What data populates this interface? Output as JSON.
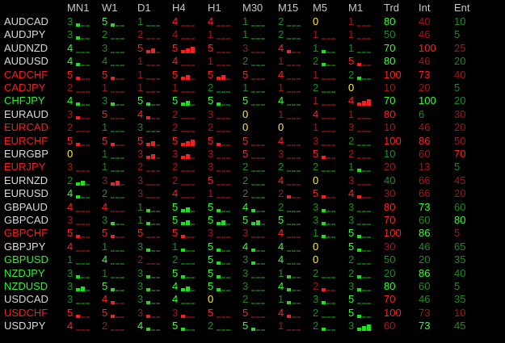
{
  "colors": {
    "header": "#c8c8c8",
    "symbol_neutral": "#d8d8d8",
    "symbol_bull": "#33ee33",
    "symbol_bear": "#ee2020",
    "digit_bull_bright": "#33ff33",
    "digit_bull_dim": "#1f8a1f",
    "digit_bear_bright": "#ff2020",
    "digit_bear_dim": "#a01818",
    "digit_neutral": "#ffee33",
    "seg_bull_strong": "#22dd22",
    "seg_bull_weak": "#0f5a0f",
    "seg_bear_strong": "#ee2222",
    "seg_bear_weak": "#601010"
  },
  "headers": [
    "MN1",
    "W1",
    "D1",
    "H4",
    "H1",
    "M30",
    "M15",
    "M5",
    "M1",
    "Trd",
    "Int",
    "Ent"
  ],
  "rows": [
    {
      "symbol": "AUDCAD",
      "sym_state": "neutral",
      "tf": [
        [
          "3",
          "gd",
          1
        ],
        [
          "5",
          "gb",
          1
        ],
        [
          "1",
          "gd",
          0
        ],
        [
          "4",
          "rb",
          0
        ],
        [
          "4",
          "rb",
          0
        ],
        [
          "1",
          "gd",
          0
        ],
        [
          "2",
          "gd",
          0
        ],
        [
          "0",
          "y",
          0
        ],
        [
          "1",
          "rd",
          0
        ]
      ],
      "trd": "80",
      "trd_c": "gb",
      "int": "40",
      "int_c": "rd",
      "ent": "10",
      "ent_c": "gd"
    },
    {
      "symbol": "AUDJPY",
      "sym_state": "neutral",
      "tf": [
        [
          "3",
          "gd",
          1
        ],
        [
          "2",
          "gd",
          0
        ],
        [
          "2",
          "rd",
          0
        ],
        [
          "4",
          "rd",
          0
        ],
        [
          "1",
          "rd",
          0
        ],
        [
          "1",
          "gd",
          0
        ],
        [
          "2",
          "gd",
          0
        ],
        [
          "1",
          "rd",
          0
        ],
        [
          "1",
          "rd",
          0
        ]
      ],
      "trd": "50",
      "trd_c": "gd",
      "int": "46",
      "int_c": "rd",
      "ent": "5",
      "ent_c": "gd"
    },
    {
      "symbol": "AUDNZD",
      "sym_state": "neutral",
      "tf": [
        [
          "4",
          "gb",
          0
        ],
        [
          "3",
          "gd",
          0
        ],
        [
          "5",
          "rb",
          2
        ],
        [
          "5",
          "rb",
          3
        ],
        [
          "5",
          "rb",
          0
        ],
        [
          "3",
          "rd",
          0
        ],
        [
          "4",
          "rb",
          1
        ],
        [
          "1",
          "gd",
          1
        ],
        [
          "1",
          "gd",
          0
        ]
      ],
      "trd": "70",
      "trd_c": "gb",
      "int": "100",
      "int_c": "rb",
      "ent": "25",
      "ent_c": "rd"
    },
    {
      "symbol": "AUDUSD",
      "sym_state": "neutral",
      "tf": [
        [
          "4",
          "gb",
          1
        ],
        [
          "4",
          "gd",
          0
        ],
        [
          "1",
          "rd",
          0
        ],
        [
          "4",
          "rb",
          0
        ],
        [
          "1",
          "rd",
          0
        ],
        [
          "2",
          "gd",
          0
        ],
        [
          "1",
          "rd",
          0
        ],
        [
          "2",
          "gd",
          1
        ],
        [
          "5",
          "rb",
          1
        ]
      ],
      "trd": "80",
      "trd_c": "gb",
      "int": "46",
      "int_c": "rd",
      "ent": "20",
      "ent_c": "gd"
    },
    {
      "symbol": "CADCHF",
      "sym_state": "bear",
      "tf": [
        [
          "5",
          "rb",
          1
        ],
        [
          "5",
          "rb",
          1
        ],
        [
          "1",
          "rd",
          0
        ],
        [
          "5",
          "rb",
          2
        ],
        [
          "5",
          "rb",
          2
        ],
        [
          "5",
          "rb",
          0
        ],
        [
          "4",
          "rb",
          0
        ],
        [
          "1",
          "rd",
          0
        ],
        [
          "2",
          "gd",
          1
        ]
      ],
      "trd": "100",
      "trd_c": "rb",
      "int": "73",
      "int_c": "rb",
      "ent": "40",
      "ent_c": "rd"
    },
    {
      "symbol": "CADJPY",
      "sym_state": "bear",
      "tf": [
        [
          "2",
          "rd",
          0
        ],
        [
          "1",
          "rd",
          0
        ],
        [
          "1",
          "rd",
          0
        ],
        [
          "1",
          "rd",
          0
        ],
        [
          "2",
          "gd",
          0
        ],
        [
          "1",
          "gd",
          0
        ],
        [
          "1",
          "rd",
          0
        ],
        [
          "2",
          "gd",
          0
        ],
        [
          "0",
          "y",
          3
        ]
      ],
      "trd": "10",
      "trd_c": "rd",
      "int": "20",
      "int_c": "rd",
      "ent": "5",
      "ent_c": "gd"
    },
    {
      "symbol": "CHFJPY",
      "sym_state": "bull",
      "tf": [
        [
          "4",
          "gb",
          1
        ],
        [
          "3",
          "gd",
          1
        ],
        [
          "5",
          "gb",
          1
        ],
        [
          "5",
          "gb",
          2
        ],
        [
          "5",
          "gb",
          1
        ],
        [
          "5",
          "gb",
          0
        ],
        [
          "4",
          "gb",
          0
        ],
        [
          "1",
          "rd",
          0
        ],
        [
          "4",
          "rb",
          3
        ]
      ],
      "trd": "70",
      "trd_c": "gb",
      "int": "100",
      "int_c": "gb",
      "ent": "20",
      "ent_c": "gd"
    },
    {
      "symbol": "EURAUD",
      "sym_state": "neutral",
      "tf": [
        [
          "3",
          "rd",
          1
        ],
        [
          "5",
          "rb",
          0
        ],
        [
          "4",
          "rb",
          1
        ],
        [
          "2",
          "rd",
          0
        ],
        [
          "3",
          "rd",
          0
        ],
        [
          "0",
          "y",
          0
        ],
        [
          "1",
          "rd",
          0
        ],
        [
          "4",
          "rb",
          0
        ],
        [
          "1",
          "rd",
          0
        ]
      ],
      "trd": "80",
      "trd_c": "rb",
      "int": "6",
      "int_c": "gd",
      "ent": "30",
      "ent_c": "rd"
    },
    {
      "symbol": "EURCAD",
      "sym_state": "bear",
      "tf": [
        [
          "2",
          "rd",
          0
        ],
        [
          "1",
          "gd",
          0
        ],
        [
          "3",
          "gd",
          0
        ],
        [
          "2",
          "rd",
          0
        ],
        [
          "2",
          "rd",
          0
        ],
        [
          "0",
          "y",
          0
        ],
        [
          "0",
          "y",
          0
        ],
        [
          "1",
          "rd",
          0
        ],
        [
          "3",
          "rd",
          0
        ]
      ],
      "trd": "10",
      "trd_c": "rd",
      "int": "46",
      "int_c": "rd",
      "ent": "20",
      "ent_c": "rd"
    },
    {
      "symbol": "EURCHF",
      "sym_state": "bear",
      "tf": [
        [
          "5",
          "rb",
          1
        ],
        [
          "5",
          "rb",
          1
        ],
        [
          "5",
          "rb",
          2
        ],
        [
          "5",
          "rb",
          3
        ],
        [
          "5",
          "rb",
          1
        ],
        [
          "5",
          "rb",
          0
        ],
        [
          "4",
          "rb",
          0
        ],
        [
          "3",
          "rd",
          0
        ],
        [
          "2",
          "gd",
          0
        ]
      ],
      "trd": "100",
      "trd_c": "rb",
      "int": "86",
      "int_c": "rb",
      "ent": "50",
      "ent_c": "rd"
    },
    {
      "symbol": "EURGBP",
      "sym_state": "neutral",
      "tf": [
        [
          "0",
          "y",
          0
        ],
        [
          "1",
          "gd",
          0
        ],
        [
          "3",
          "rd",
          2
        ],
        [
          "3",
          "rd",
          2
        ],
        [
          "3",
          "rd",
          0
        ],
        [
          "5",
          "rb",
          0
        ],
        [
          "3",
          "rd",
          0
        ],
        [
          "5",
          "rb",
          1
        ],
        [
          "2",
          "rd",
          0
        ]
      ],
      "trd": "10",
      "trd_c": "gd",
      "int": "60",
      "int_c": "rd",
      "ent": "70",
      "ent_c": "rb"
    },
    {
      "symbol": "EURJPY",
      "sym_state": "bear",
      "tf": [
        [
          "3",
          "rd",
          0
        ],
        [
          "1",
          "gd",
          0
        ],
        [
          "2",
          "rd",
          0
        ],
        [
          "2",
          "rd",
          0
        ],
        [
          "3",
          "rd",
          0
        ],
        [
          "2",
          "gd",
          0
        ],
        [
          "2",
          "gd",
          0
        ],
        [
          "2",
          "gd",
          0
        ],
        [
          "1",
          "gd",
          1
        ]
      ],
      "trd": "20",
      "trd_c": "rd",
      "int": "13",
      "int_c": "rd",
      "ent": "5",
      "ent_c": "gd"
    },
    {
      "symbol": "EURNZD",
      "sym_state": "neutral",
      "tf": [
        [
          "2",
          "gd",
          2
        ],
        [
          "3",
          "rd",
          2
        ],
        [
          "3",
          "rd",
          0
        ],
        [
          "2",
          "rd",
          0
        ],
        [
          "5",
          "rb",
          0
        ],
        [
          "2",
          "gd",
          0
        ],
        [
          "4",
          "rb",
          0
        ],
        [
          "0",
          "y",
          0
        ],
        [
          "3",
          "rd",
          0
        ]
      ],
      "trd": "40",
      "trd_c": "gd",
      "int": "66",
      "int_c": "rd",
      "ent": "45",
      "ent_c": "rd"
    },
    {
      "symbol": "EURUSD",
      "sym_state": "neutral",
      "tf": [
        [
          "4",
          "gb",
          1
        ],
        [
          "2",
          "gd",
          0
        ],
        [
          "3",
          "rd",
          0
        ],
        [
          "4",
          "rb",
          0
        ],
        [
          "1",
          "rd",
          0
        ],
        [
          "2",
          "gd",
          0
        ],
        [
          "2",
          "rd",
          1
        ],
        [
          "5",
          "rb",
          1
        ],
        [
          "4",
          "rb",
          1
        ]
      ],
      "trd": "30",
      "trd_c": "rd",
      "int": "66",
      "int_c": "rd",
      "ent": "20",
      "ent_c": "rd"
    },
    {
      "symbol": "GBPAUD",
      "sym_state": "neutral",
      "tf": [
        [
          "4",
          "rb",
          0
        ],
        [
          "4",
          "rb",
          0
        ],
        [
          "1",
          "gd",
          1
        ],
        [
          "5",
          "gb",
          2
        ],
        [
          "5",
          "gb",
          1
        ],
        [
          "4",
          "gb",
          1
        ],
        [
          "2",
          "gd",
          0
        ],
        [
          "3",
          "gd",
          1
        ],
        [
          "3",
          "gd",
          0
        ]
      ],
      "trd": "80",
      "trd_c": "rb",
      "int": "73",
      "int_c": "gb",
      "ent": "60",
      "ent_c": "gd"
    },
    {
      "symbol": "GBPCAD",
      "sym_state": "neutral",
      "tf": [
        [
          "3",
          "rd",
          0
        ],
        [
          "3",
          "gd",
          1
        ],
        [
          "1",
          "gd",
          1
        ],
        [
          "5",
          "gb",
          2
        ],
        [
          "5",
          "gb",
          2
        ],
        [
          "5",
          "gb",
          2
        ],
        [
          "5",
          "gb",
          0
        ],
        [
          "3",
          "gd",
          1
        ],
        [
          "3",
          "gd",
          0
        ]
      ],
      "trd": "70",
      "trd_c": "rb",
      "int": "60",
      "int_c": "gd",
      "ent": "80",
      "ent_c": "gb"
    },
    {
      "symbol": "GBPCHF",
      "sym_state": "bear",
      "tf": [
        [
          "5",
          "rb",
          1
        ],
        [
          "5",
          "rb",
          1
        ],
        [
          "5",
          "rb",
          0
        ],
        [
          "5",
          "rb",
          1
        ],
        [
          "3",
          "rd",
          0
        ],
        [
          "3",
          "rd",
          0
        ],
        [
          "4",
          "rb",
          0
        ],
        [
          "1",
          "gd",
          1
        ],
        [
          "5",
          "gb",
          1
        ]
      ],
      "trd": "100",
      "trd_c": "rb",
      "int": "86",
      "int_c": "gb",
      "ent": "5",
      "ent_c": "rd"
    },
    {
      "symbol": "GBPJPY",
      "sym_state": "neutral",
      "tf": [
        [
          "4",
          "rb",
          0
        ],
        [
          "1",
          "gd",
          0
        ],
        [
          "3",
          "gd",
          1
        ],
        [
          "1",
          "gd",
          1
        ],
        [
          "5",
          "gb",
          1
        ],
        [
          "4",
          "gb",
          1
        ],
        [
          "4",
          "gb",
          0
        ],
        [
          "0",
          "y",
          1
        ],
        [
          "5",
          "gb",
          1
        ]
      ],
      "trd": "30",
      "trd_c": "rd",
      "int": "46",
      "int_c": "gd",
      "ent": "65",
      "ent_c": "gd"
    },
    {
      "symbol": "GBPUSD",
      "sym_state": "bull",
      "tf": [
        [
          "1",
          "gd",
          0
        ],
        [
          "4",
          "gb",
          0
        ],
        [
          "2",
          "rd",
          0
        ],
        [
          "2",
          "gd",
          0
        ],
        [
          "5",
          "gb",
          1
        ],
        [
          "3",
          "gd",
          1
        ],
        [
          "4",
          "gb",
          0
        ],
        [
          "0",
          "y",
          0
        ],
        [
          "2",
          "gd",
          0
        ]
      ],
      "trd": "50",
      "trd_c": "gd",
      "int": "20",
      "int_c": "gd",
      "ent": "35",
      "ent_c": "gd"
    },
    {
      "symbol": "NZDJPY",
      "sym_state": "bull",
      "tf": [
        [
          "3",
          "gd",
          1
        ],
        [
          "1",
          "gd",
          0
        ],
        [
          "3",
          "gd",
          1
        ],
        [
          "5",
          "gb",
          1
        ],
        [
          "5",
          "gb",
          1
        ],
        [
          "3",
          "gd",
          0
        ],
        [
          "1",
          "gd",
          1
        ],
        [
          "2",
          "gd",
          0
        ],
        [
          "2",
          "gd",
          1
        ]
      ],
      "trd": "20",
      "trd_c": "gd",
      "int": "86",
      "int_c": "gb",
      "ent": "40",
      "ent_c": "gd"
    },
    {
      "symbol": "NZDUSD",
      "sym_state": "bull",
      "tf": [
        [
          "3",
          "gd",
          2
        ],
        [
          "5",
          "gb",
          1
        ],
        [
          "3",
          "gd",
          1
        ],
        [
          "4",
          "gb",
          2
        ],
        [
          "5",
          "gb",
          1
        ],
        [
          "3",
          "gd",
          0
        ],
        [
          "4",
          "gb",
          1
        ],
        [
          "2",
          "rd",
          1
        ],
        [
          "3",
          "gd",
          1
        ]
      ],
      "trd": "80",
      "trd_c": "gb",
      "int": "60",
      "int_c": "gd",
      "ent": "5",
      "ent_c": "gd"
    },
    {
      "symbol": "USDCAD",
      "sym_state": "neutral",
      "tf": [
        [
          "3",
          "gd",
          0
        ],
        [
          "4",
          "rb",
          1
        ],
        [
          "3",
          "gd",
          1
        ],
        [
          "4",
          "gb",
          0
        ],
        [
          "0",
          "y",
          0
        ],
        [
          "2",
          "gd",
          0
        ],
        [
          "1",
          "gd",
          1
        ],
        [
          "3",
          "gd",
          1
        ],
        [
          "5",
          "gb",
          0
        ]
      ],
      "trd": "70",
      "trd_c": "rb",
      "int": "46",
      "int_c": "gd",
      "ent": "35",
      "ent_c": "gd"
    },
    {
      "symbol": "USDCHF",
      "sym_state": "bear",
      "tf": [
        [
          "5",
          "rb",
          1
        ],
        [
          "5",
          "rb",
          1
        ],
        [
          "3",
          "rd",
          1
        ],
        [
          "3",
          "rd",
          1
        ],
        [
          "5",
          "rb",
          0
        ],
        [
          "5",
          "rb",
          0
        ],
        [
          "4",
          "rb",
          1
        ],
        [
          "2",
          "gd",
          0
        ],
        [
          "5",
          "gb",
          1
        ]
      ],
      "trd": "100",
      "trd_c": "rb",
      "int": "73",
      "int_c": "rd",
      "ent": "10",
      "ent_c": "rd"
    },
    {
      "symbol": "USDJPY",
      "sym_state": "neutral",
      "tf": [
        [
          "4",
          "rb",
          0
        ],
        [
          "2",
          "rd",
          0
        ],
        [
          "4",
          "gb",
          1
        ],
        [
          "5",
          "gb",
          1
        ],
        [
          "2",
          "gd",
          0
        ],
        [
          "5",
          "gb",
          1
        ],
        [
          "1",
          "rd",
          0
        ],
        [
          "2",
          "gd",
          1
        ],
        [
          "3",
          "gd",
          3
        ]
      ],
      "trd": "60",
      "trd_c": "rd",
      "int": "73",
      "int_c": "gb",
      "ent": "45",
      "ent_c": "gd"
    }
  ]
}
